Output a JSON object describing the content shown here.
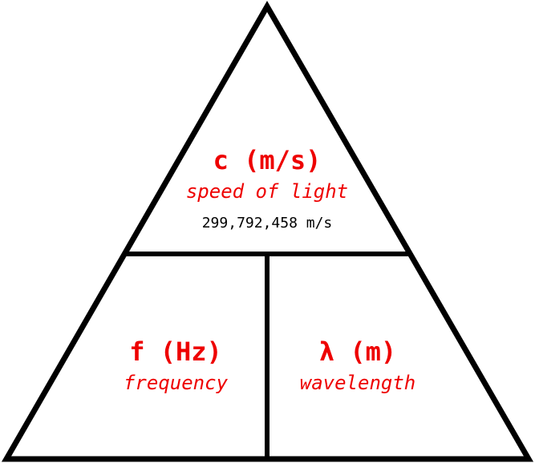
{
  "colors": {
    "label": "#ee0000",
    "value": "#000000",
    "outline": "#000000",
    "background": "#ffffff"
  },
  "top": {
    "symbol": "c (m/s)",
    "description": "speed of light",
    "value": "299,792,458 m/s"
  },
  "bottom_left": {
    "symbol": "f (Hz)",
    "description": "frequency"
  },
  "bottom_right": {
    "symbol": "λ (m)",
    "description": "wavelength"
  }
}
